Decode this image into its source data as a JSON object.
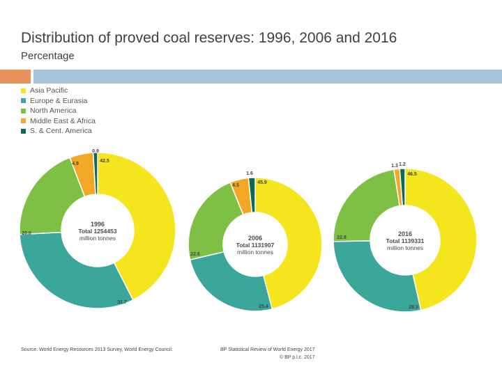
{
  "header": {
    "title": "Distribution of proved coal reserves: 1996, 2006 and 2016",
    "subtitle": "Percentage"
  },
  "legend": [
    {
      "label": "Asia Pacific",
      "color": "#f4e51c"
    },
    {
      "label": "Europe & Eurasia",
      "color": "#3aa79a"
    },
    {
      "label": "North America",
      "color": "#7dc043"
    },
    {
      "label": "Middle East & Africa",
      "color": "#f3a825"
    },
    {
      "label": "S. & Cent. America",
      "color": "#0c6b52"
    }
  ],
  "chart_data": [
    {
      "type": "pie",
      "title": "1996",
      "total_label": "Total 1254453",
      "unit": "million tonnes",
      "categories": [
        "Asia Pacific",
        "Europe & Eurasia",
        "North America",
        "Middle East & Africa",
        "S. & Cent. America"
      ],
      "values": [
        42.5,
        31.7,
        20.0,
        4.9,
        0.9
      ],
      "value_labels": [
        "42.5",
        "31.7",
        "20.0",
        "4.9",
        "0.9"
      ]
    },
    {
      "type": "pie",
      "title": "2006",
      "total_label": "Total 1131907",
      "unit": "million tonnes",
      "categories": [
        "Asia Pacific",
        "Europe & Eurasia",
        "North America",
        "Middle East & Africa",
        "S. & Cent. America"
      ],
      "values": [
        45.9,
        25.4,
        22.6,
        4.5,
        1.6
      ],
      "value_labels": [
        "45.9",
        "25.4",
        "22.6",
        "4.5",
        "1.6"
      ]
    },
    {
      "type": "pie",
      "title": "2016",
      "total_label": "Total 1139331",
      "unit": "million tonnes",
      "categories": [
        "Asia Pacific",
        "Europe & Eurasia",
        "North America",
        "Middle East & Africa",
        "S. & Cent. America"
      ],
      "values": [
        46.5,
        28.3,
        22.8,
        1.3,
        1.2
      ],
      "value_labels": [
        "46.5",
        "28.3",
        "22.8",
        "1.3",
        "1.2"
      ]
    }
  ],
  "footer": {
    "source": "Source: World Energy Resources 2013 Survey, World Energy Council.",
    "credit_line1": "BP Statistical Review of World Energy 2017",
    "credit_line2": "© BP p.l.c. 2017"
  }
}
